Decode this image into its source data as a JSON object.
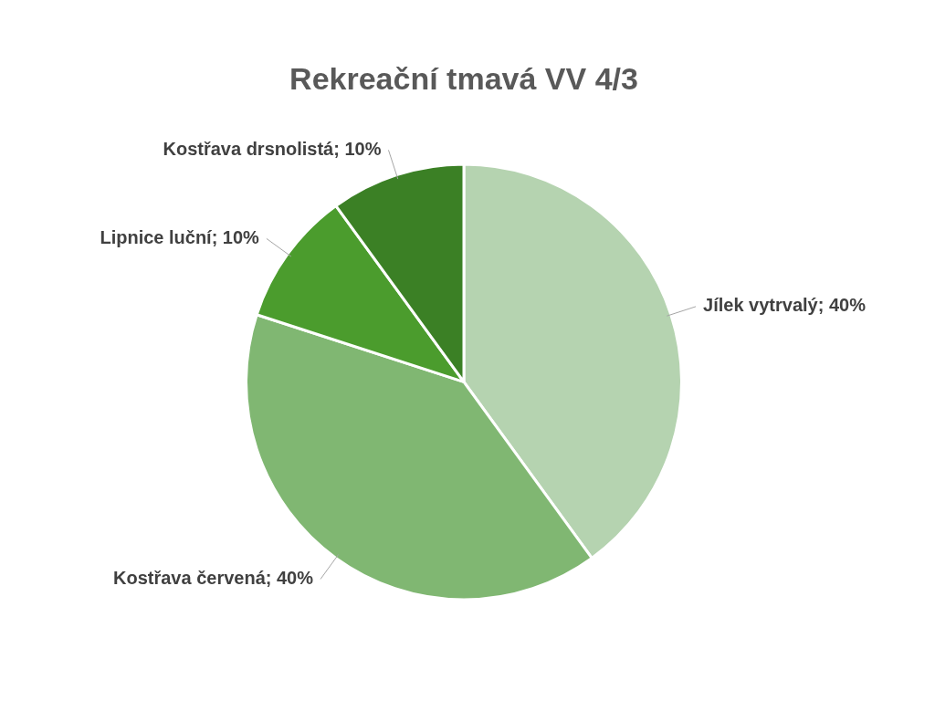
{
  "chart_data": {
    "type": "pie",
    "title": "Rekreační tmavá VV 4/3",
    "categories": [
      "Jílek vytrvalý",
      "Kostřava červená",
      "Lipnice luční",
      "Kostřava drsnolistá"
    ],
    "values": [
      40,
      40,
      10,
      10
    ],
    "colors": [
      "#b5d3b0",
      "#80b772",
      "#4b9c2d",
      "#3b8025"
    ],
    "value_labels": [
      "40%",
      "40%",
      "10%",
      "10%"
    ],
    "legend": false
  }
}
